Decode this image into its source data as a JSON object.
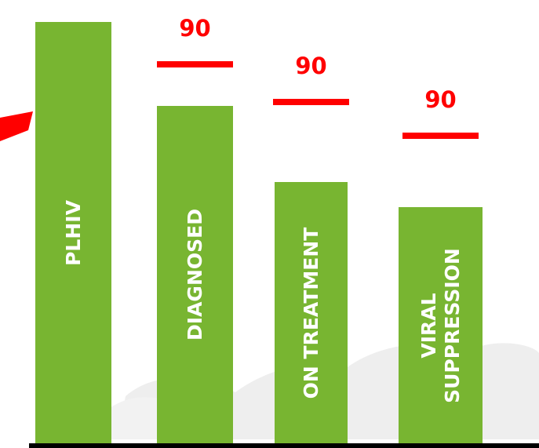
{
  "colors": {
    "bar": "#78b531",
    "target": "#ff0000",
    "baseline": "#000000",
    "bar_label": "#ffffff"
  },
  "chart_data": {
    "type": "bar",
    "title": "",
    "xlabel": "",
    "ylabel": "",
    "categories": [
      "PLHIV",
      "DIAGNOSED",
      "ON TREATMENT",
      "VIRAL\nSUPPRESSION"
    ],
    "values": [
      100,
      80,
      62,
      56
    ],
    "ylim": [
      0,
      100
    ],
    "targets": [
      {
        "category": "DIAGNOSED",
        "value": 90,
        "label": "90"
      },
      {
        "category": "ON TREATMENT",
        "value": 81,
        "label": "90"
      },
      {
        "category": "VIRAL\nSUPPRESSION",
        "value": 73,
        "label": "90"
      }
    ],
    "grid": false,
    "legend": "none"
  }
}
